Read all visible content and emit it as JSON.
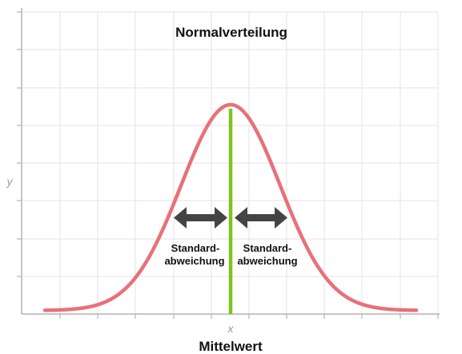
{
  "title": "Normalverteilung",
  "y_axis_label": "y",
  "x_axis_label": "x",
  "mean_label": "Mittelwert",
  "std_dev_left": {
    "line1": "Standard-",
    "line2": "abweichung"
  },
  "std_dev_right": {
    "line1": "Standard-",
    "line2": "abweichung"
  },
  "colors": {
    "curve": "#e8707a",
    "mean_line": "#7fc31c",
    "arrows": "#444444",
    "grid": "#e3e3e3",
    "axes": "#b4b4b4",
    "text": "#111111",
    "axis_letter": "#9a9a9a"
  },
  "icons": {
    "std_dev_left_arrow": "double-headed-arrow-icon",
    "std_dev_right_arrow": "double-headed-arrow-icon"
  }
}
